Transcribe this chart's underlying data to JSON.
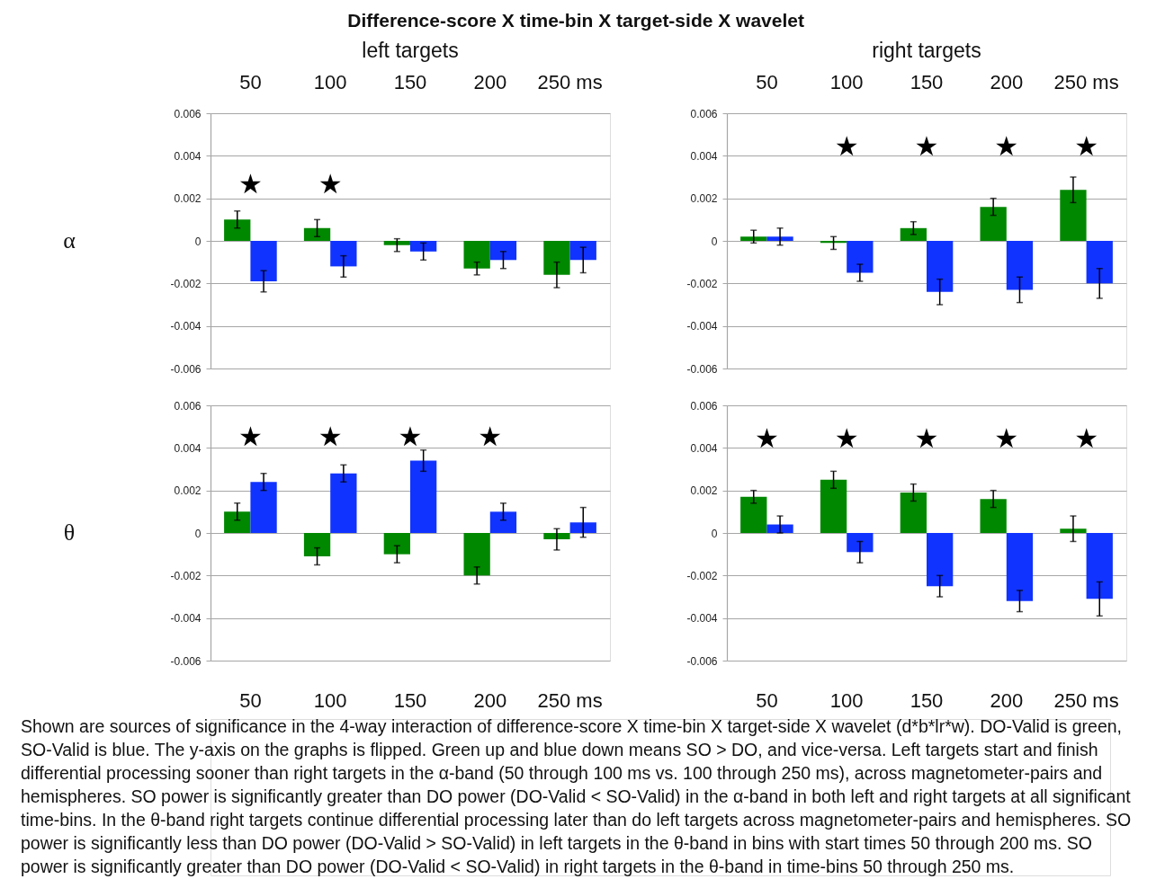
{
  "chart_data": [
    {
      "type": "other",
      "title": "Difference-score X time-bin X target-side X wavelet",
      "annotations": [
        "Shown are sources of significance in the 4-way interaction of difference-score X time-bin X target-side X wavelet (d*b*lr*w). DO-Valid is green, SO-Valid is blue. The y-axis on the graphs is flipped. Green up and blue down means SO > DO, and vice-versa. Left targets start and finish differential processing sooner than right targets in the α-band (50 through 100 ms vs. 100 through 250 ms), across magnetometer-pairs and hemispheres. SO power is significantly greater than DO power (DO-Valid < SO-Valid) in the α-band in both left and right targets at all significant time-bins. In the θ-band right targets continue differential processing later than do left targets across magnetometer-pairs and hemispheres. SO power is significantly less than DO power  (DO-Valid > SO-Valid) in left targets in the θ-band in bins with start times 50 through 200 ms. SO power is significantly greater than DO power (DO-Valid < SO-Valid) in right targets in the θ-band in time-bins 50 through 250 ms."
      ]
    },
    {
      "type": "bar",
      "title": "left targets",
      "ylabel": "α",
      "categories": [
        "50",
        "100",
        "150",
        "200",
        "250 ms"
      ],
      "series": [
        {
          "color": "#008800",
          "values": [
            0.001,
            0.0006,
            -0.0002,
            -0.0013,
            -0.0016
          ],
          "errors": [
            0.0004,
            0.0004,
            0.0003,
            0.0003,
            0.0006
          ]
        },
        {
          "color": "#1133ff",
          "values": [
            -0.0019,
            -0.0012,
            -0.0005,
            -0.0009,
            -0.0009
          ],
          "errors": [
            0.0005,
            0.0005,
            0.0004,
            0.0004,
            0.0006
          ]
        }
      ],
      "ylim": [
        -0.006,
        0.006
      ],
      "yticks": [
        -0.006,
        -0.004,
        -0.002,
        0,
        0.002,
        0.004,
        0.006
      ],
      "grid": "y",
      "annotations": [
        "★",
        "★"
      ]
    },
    {
      "type": "bar",
      "title": "right targets",
      "categories": [
        "50",
        "100",
        "150",
        "200",
        "250 ms"
      ],
      "series": [
        {
          "color": "#008800",
          "values": [
            0.0002,
            -0.0001,
            0.0006,
            0.0016,
            0.0024
          ],
          "errors": [
            0.0003,
            0.0003,
            0.0003,
            0.0004,
            0.0006
          ]
        },
        {
          "color": "#1133ff",
          "values": [
            0.0002,
            -0.0015,
            -0.0024,
            -0.0023,
            -0.002
          ],
          "errors": [
            0.0004,
            0.0004,
            0.0006,
            0.0006,
            0.0007
          ]
        }
      ],
      "ylim": [
        -0.006,
        0.006
      ],
      "yticks": [
        -0.006,
        -0.004,
        -0.002,
        0,
        0.002,
        0.004,
        0.006
      ],
      "grid": "y",
      "annotations": [
        "★",
        "★",
        "★",
        "★"
      ]
    },
    {
      "type": "bar",
      "ylabel": "θ",
      "categories": [
        "50",
        "100",
        "150",
        "200",
        "250 ms"
      ],
      "series": [
        {
          "color": "#008800",
          "values": [
            0.001,
            -0.0011,
            -0.001,
            -0.002,
            -0.0003
          ],
          "errors": [
            0.0004,
            0.0004,
            0.0004,
            0.0004,
            0.0005
          ]
        },
        {
          "color": "#1133ff",
          "values": [
            0.0024,
            0.0028,
            0.0034,
            0.001,
            0.0005
          ],
          "errors": [
            0.0004,
            0.0004,
            0.0005,
            0.0004,
            0.0007
          ]
        }
      ],
      "ylim": [
        -0.006,
        0.006
      ],
      "yticks": [
        -0.006,
        -0.004,
        -0.002,
        0,
        0.002,
        0.004,
        0.006
      ],
      "grid": "y",
      "annotations": [
        "★",
        "★",
        "★",
        "★"
      ]
    },
    {
      "type": "bar",
      "categories": [
        "50",
        "100",
        "150",
        "200",
        "250 ms"
      ],
      "series": [
        {
          "color": "#008800",
          "values": [
            0.0017,
            0.0025,
            0.0019,
            0.0016,
            0.0002
          ],
          "errors": [
            0.0003,
            0.0004,
            0.0004,
            0.0004,
            0.0006
          ]
        },
        {
          "color": "#1133ff",
          "values": [
            0.0004,
            -0.0009,
            -0.0025,
            -0.0032,
            -0.0031
          ],
          "errors": [
            0.0004,
            0.0005,
            0.0005,
            0.0005,
            0.0008
          ]
        }
      ],
      "ylim": [
        -0.006,
        0.006
      ],
      "yticks": [
        -0.006,
        -0.004,
        -0.002,
        0,
        0.002,
        0.004,
        0.006
      ],
      "grid": "y",
      "annotations": [
        "★",
        "★",
        "★",
        "★",
        "★"
      ]
    }
  ]
}
